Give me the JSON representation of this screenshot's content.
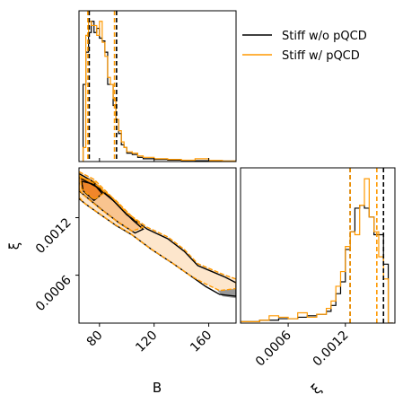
{
  "chart_data": [
    {
      "type": "histogram",
      "panel": "B marginal",
      "series": [
        {
          "name": "Stiff w/o pQCD",
          "color": "#000000",
          "bin_edges": [
            68,
            70,
            72,
            74,
            76,
            78,
            80,
            82,
            84,
            86,
            88,
            90,
            92,
            94,
            96,
            98,
            100,
            104,
            108,
            112,
            116,
            120,
            130,
            140,
            150,
            160,
            170,
            180
          ],
          "values": [
            0.55,
            0.78,
            0.92,
            1.0,
            0.92,
            0.95,
            0.88,
            0.86,
            0.78,
            0.55,
            0.55,
            0.4,
            0.3,
            0.2,
            0.12,
            0.1,
            0.06,
            0.05,
            0.03,
            0.02,
            0.02,
            0.015,
            0.01,
            0.008,
            0.006,
            0.004,
            0.003
          ],
          "quantiles": [
            72.5,
            92.5
          ]
        },
        {
          "name": "Stiff w/ pQCD",
          "color": "#ff9900",
          "bin_edges": [
            68,
            70,
            72,
            74,
            76,
            78,
            80,
            82,
            84,
            86,
            88,
            90,
            92,
            94,
            96,
            98,
            100,
            104,
            108,
            112,
            116,
            120,
            130,
            140,
            150,
            160,
            170,
            180
          ],
          "values": [
            0.1,
            0.9,
            1.0,
            0.97,
            0.97,
            0.9,
            1.0,
            0.85,
            0.75,
            0.6,
            0.55,
            0.45,
            0.3,
            0.22,
            0.14,
            0.1,
            0.07,
            0.06,
            0.04,
            0.03,
            0.03,
            0.02,
            0.015,
            0.01,
            0.02,
            0.008,
            0.004
          ],
          "quantiles": [
            71.5,
            91.0
          ]
        }
      ],
      "xlim": [
        65,
        180
      ]
    },
    {
      "type": "histogram",
      "panel": "xi marginal",
      "series": [
        {
          "name": "Stiff w/o pQCD",
          "color": "#000000",
          "bin_edges": [
            0.0,
            0.0001,
            0.0002,
            0.0003,
            0.0004,
            0.0005,
            0.0006,
            0.0007,
            0.0008,
            0.0009,
            0.001,
            0.00105,
            0.0011,
            0.00115,
            0.0012,
            0.00125,
            0.0013,
            0.00135,
            0.0014,
            0.00145,
            0.0015,
            0.00155,
            0.0016,
            0.00165,
            0.0017
          ],
          "values": [
            0.0,
            0.01,
            0.01,
            0.02,
            0.02,
            0.03,
            0.03,
            0.04,
            0.05,
            0.06,
            0.08,
            0.12,
            0.2,
            0.28,
            0.5,
            0.62,
            0.78,
            0.8,
            0.78,
            0.72,
            0.6,
            0.6,
            0.4,
            0.0
          ],
          "quantiles": [
            0.00125,
            0.0016
          ]
        },
        {
          "name": "Stiff w/ pQCD",
          "color": "#ff9900",
          "bin_edges": [
            0.0,
            0.0001,
            0.0002,
            0.0003,
            0.0004,
            0.0005,
            0.0006,
            0.0007,
            0.0008,
            0.0009,
            0.001,
            0.00105,
            0.0011,
            0.00115,
            0.0012,
            0.00125,
            0.0013,
            0.00135,
            0.0014,
            0.00145,
            0.0015,
            0.00155,
            0.0016,
            0.00165,
            0.0017
          ],
          "values": [
            0.0,
            0.01,
            0.01,
            0.02,
            0.05,
            0.04,
            0.03,
            0.07,
            0.04,
            0.06,
            0.1,
            0.15,
            0.25,
            0.35,
            0.52,
            0.62,
            0.6,
            0.8,
            0.98,
            0.72,
            0.62,
            0.45,
            0.3,
            0.0
          ],
          "quantiles": [
            0.00125,
            0.00153
          ]
        }
      ],
      "xlim": [
        0.0001,
        0.00172
      ],
      "xticks": [
        0.0006,
        0.0012
      ],
      "xtick_labels": [
        "0.0006",
        "0.0012"
      ],
      "xlabel": "ξ"
    },
    {
      "type": "contour",
      "panel": "B vs xi joint",
      "series": [
        {
          "name": "Stiff w/o pQCD",
          "color": "#000000",
          "levels": [
            [
              [
                65,
                0.00166
              ],
              [
                75,
                0.00158
              ],
              [
                88,
                0.00141
              ],
              [
                100,
                0.00123
              ],
              [
                115,
                0.00108
              ],
              [
                130,
                0.00098
              ],
              [
                142,
                0.00085
              ],
              [
                152,
                0.0007
              ],
              [
                162,
                0.00064
              ],
              [
                172,
                0.00058
              ],
              [
                180,
                0.00052
              ],
              [
                180,
                0.00038
              ],
              [
                168,
                0.0004
              ],
              [
                158,
                0.00048
              ],
              [
                148,
                0.00058
              ],
              [
                134,
                0.00072
              ],
              [
                118,
                0.00087
              ],
              [
                104,
                0.00102
              ],
              [
                92,
                0.00112
              ],
              [
                80,
                0.00124
              ],
              [
                70,
                0.00134
              ],
              [
                65,
                0.0014
              ]
            ],
            [
              [
                65,
                0.00162
              ],
              [
                78,
                0.00152
              ],
              [
                90,
                0.00138
              ],
              [
                104,
                0.00118
              ],
              [
                112,
                0.00108
              ],
              [
                106,
                0.00104
              ],
              [
                94,
                0.00115
              ],
              [
                82,
                0.00128
              ],
              [
                70,
                0.00142
              ],
              [
                65,
                0.00148
              ]
            ],
            [
              [
                67,
                0.00158
              ],
              [
                76,
                0.00155
              ],
              [
                82,
                0.00145
              ],
              [
                76,
                0.00138
              ],
              [
                68,
                0.00148
              ]
            ]
          ]
        },
        {
          "name": "Stiff w/ pQCD",
          "color": "#ff9900",
          "levels": [
            [
              [
                65,
                0.00168
              ],
              [
                76,
                0.0016
              ],
              [
                88,
                0.00143
              ],
              [
                100,
                0.00125
              ],
              [
                115,
                0.0011
              ],
              [
                130,
                0.001
              ],
              [
                142,
                0.00087
              ],
              [
                152,
                0.00072
              ],
              [
                162,
                0.00066
              ],
              [
                172,
                0.0006
              ],
              [
                180,
                0.00056
              ],
              [
                180,
                0.00046
              ],
              [
                168,
                0.00044
              ],
              [
                156,
                0.00052
              ],
              [
                146,
                0.0006
              ],
              [
                132,
                0.00074
              ],
              [
                116,
                0.00089
              ],
              [
                102,
                0.00104
              ],
              [
                90,
                0.00114
              ],
              [
                78,
                0.00126
              ],
              [
                68,
                0.00136
              ],
              [
                65,
                0.00142
              ]
            ],
            [
              [
                65,
                0.00164
              ],
              [
                78,
                0.00154
              ],
              [
                92,
                0.00138
              ],
              [
                106,
                0.00118
              ],
              [
                112,
                0.0011
              ],
              [
                104,
                0.00106
              ],
              [
                92,
                0.00117
              ],
              [
                80,
                0.0013
              ],
              [
                68,
                0.00144
              ],
              [
                65,
                0.0015
              ]
            ],
            [
              [
                66,
                0.00162
              ],
              [
                76,
                0.00158
              ],
              [
                84,
                0.00146
              ],
              [
                76,
                0.00139
              ],
              [
                67,
                0.0015
              ]
            ]
          ]
        }
      ],
      "xlim": [
        65,
        180
      ],
      "ylim": [
        0.0001,
        0.00172
      ],
      "xticks": [
        80,
        120,
        160
      ],
      "xtick_labels": [
        "80",
        "120",
        "160"
      ],
      "yticks": [
        0.0006,
        0.0012
      ],
      "ytick_labels": [
        "0.0006",
        "0.0012"
      ],
      "xlabel": "B",
      "ylabel": "ξ"
    }
  ],
  "legend": {
    "placement": "top-right",
    "entries": [
      {
        "label": "Stiff w/o pQCD",
        "color": "#000000"
      },
      {
        "label": "Stiff w/ pQCD",
        "color": "#ff9900"
      }
    ]
  },
  "colors": {
    "orange": "#ff9900",
    "orange_fill_light": "#fde6cc",
    "orange_fill_mid": "#f9c48f",
    "orange_fill_dark": "#f0862a",
    "gray_fill": "#999999"
  }
}
